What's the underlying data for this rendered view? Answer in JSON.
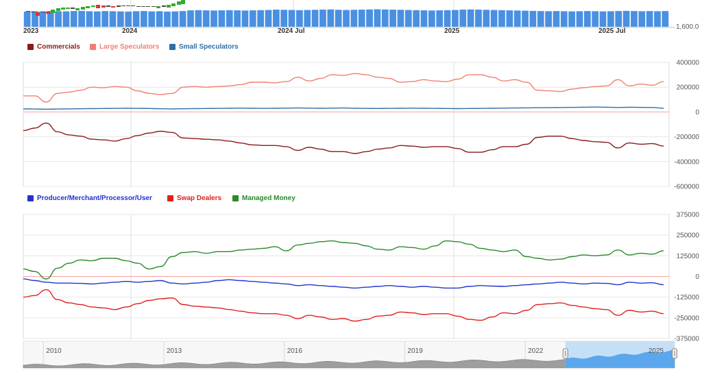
{
  "colors": {
    "commercials": "#8b1a1a",
    "large_speculators": "#f08070",
    "small_speculators": "#2f6ea8",
    "producer": "#2233cc",
    "swap_dealers": "#e02020",
    "managed_money": "#2a8a2a",
    "volume_bar": "#4a90e2",
    "zero_line": "#f2a0a0",
    "navigator_fill": "#9e9e9e",
    "navigator_selection": "#bcdcf6",
    "navigator_selected_fill": "#5aa7ee"
  },
  "top_panel": {
    "x_labels": [
      "2023",
      "2024",
      "2024 Jul",
      "2025",
      "2025 Jul"
    ],
    "y_label": "1,600.0"
  },
  "legend1": {
    "commercials": "Commercials",
    "large_speculators": "Large Speculators",
    "small_speculators": "Small Speculators"
  },
  "legend2": {
    "producer": "Producer/Merchant/Processor/User",
    "swap_dealers": "Swap Dealers",
    "managed_money": "Managed Money"
  },
  "navigator": {
    "labels": [
      "2010",
      "2013",
      "2016",
      "2019",
      "2022",
      "2025"
    ]
  },
  "chart_data": [
    {
      "type": "bar",
      "name": "volume",
      "y_label": "1,600.0",
      "x_range": [
        2023.0,
        2025.72
      ],
      "values_relative": [
        0.85,
        0.87,
        0.86,
        0.88,
        0.87,
        0.86,
        0.88,
        0.89,
        0.87,
        0.86,
        0.88,
        0.87,
        0.86,
        0.85,
        0.87,
        0.88,
        0.86,
        0.87,
        0.85,
        0.86,
        0.88,
        0.92,
        0.93,
        0.92,
        0.91,
        0.92,
        0.93,
        0.92,
        0.91,
        0.92,
        0.93,
        0.94,
        0.96,
        0.95,
        0.94,
        0.93,
        0.94,
        0.95,
        0.96,
        0.97,
        0.95,
        0.94,
        0.95,
        0.96,
        0.97,
        0.98,
        0.97,
        0.96,
        0.95,
        0.94,
        0.93,
        0.92,
        0.91,
        0.92,
        0.93,
        0.94,
        0.96,
        0.97,
        0.96,
        0.95,
        0.94,
        0.93,
        0.92,
        0.91,
        0.9,
        0.89,
        0.88,
        0.87,
        0.88,
        0.87,
        0.86,
        0.87,
        0.88,
        0.87,
        0.86,
        0.87,
        0.88,
        0.89,
        0.88,
        0.87,
        0.88,
        0.87,
        0.88
      ]
    },
    {
      "type": "line",
      "name": "legacy positions",
      "x_range": [
        2023.0,
        2025.72
      ],
      "ylim": [
        -600000,
        400000
      ],
      "yticks": [
        400000,
        200000,
        0,
        -200000,
        -400000,
        -600000
      ],
      "series": [
        {
          "name": "Large Speculators",
          "color_key": "large_speculators",
          "values": [
            130000,
            130000,
            80000,
            150000,
            160000,
            175000,
            200000,
            195000,
            205000,
            200000,
            170000,
            150000,
            140000,
            150000,
            200000,
            205000,
            200000,
            205000,
            210000,
            220000,
            240000,
            240000,
            235000,
            245000,
            280000,
            250000,
            270000,
            300000,
            295000,
            310000,
            300000,
            280000,
            270000,
            240000,
            245000,
            260000,
            250000,
            245000,
            265000,
            300000,
            300000,
            280000,
            250000,
            260000,
            240000,
            175000,
            170000,
            165000,
            185000,
            195000,
            205000,
            210000,
            260000,
            210000,
            225000,
            215000,
            245000
          ]
        },
        {
          "name": "Small Speculators",
          "color_key": "small_speculators",
          "values": [
            25000,
            24000,
            22000,
            24000,
            25000,
            26000,
            27000,
            28000,
            29000,
            30000,
            29000,
            28000,
            26000,
            25000,
            26000,
            27000,
            28000,
            29000,
            30000,
            31000,
            30000,
            29000,
            30000,
            31000,
            32000,
            31000,
            30000,
            31000,
            32000,
            30000,
            29000,
            28000,
            29000,
            30000,
            31000,
            30000,
            29000,
            28000,
            27000,
            28000,
            29000,
            30000,
            31000,
            32000,
            33000,
            34000,
            35000,
            36000,
            37000,
            38000,
            40000,
            38000,
            36000,
            38000,
            37000,
            36000,
            30000
          ]
        },
        {
          "name": "Commercials",
          "color_key": "commercials",
          "values": [
            -150000,
            -130000,
            -90000,
            -160000,
            -185000,
            -195000,
            -220000,
            -225000,
            -235000,
            -215000,
            -190000,
            -170000,
            -155000,
            -165000,
            -210000,
            -215000,
            -220000,
            -225000,
            -235000,
            -250000,
            -265000,
            -270000,
            -270000,
            -280000,
            -310000,
            -285000,
            -300000,
            -320000,
            -320000,
            -335000,
            -320000,
            -300000,
            -290000,
            -270000,
            -275000,
            -285000,
            -280000,
            -280000,
            -295000,
            -325000,
            -325000,
            -305000,
            -280000,
            -280000,
            -260000,
            -205000,
            -195000,
            -195000,
            -215000,
            -230000,
            -240000,
            -245000,
            -290000,
            -250000,
            -260000,
            -255000,
            -275000
          ]
        }
      ]
    },
    {
      "type": "line",
      "name": "disaggregated positions",
      "x_range": [
        2023.0,
        2025.72
      ],
      "ylim": [
        -375000,
        375000
      ],
      "yticks": [
        375000,
        250000,
        125000,
        0,
        -125000,
        -250000,
        -375000
      ],
      "series": [
        {
          "name": "Managed Money",
          "color_key": "managed_money",
          "values": [
            45000,
            30000,
            -15000,
            50000,
            80000,
            100000,
            95000,
            110000,
            110000,
            95000,
            80000,
            45000,
            60000,
            120000,
            145000,
            150000,
            140000,
            150000,
            150000,
            160000,
            165000,
            170000,
            180000,
            155000,
            190000,
            200000,
            210000,
            215000,
            205000,
            200000,
            185000,
            165000,
            160000,
            180000,
            175000,
            165000,
            185000,
            215000,
            210000,
            195000,
            170000,
            160000,
            150000,
            160000,
            120000,
            110000,
            100000,
            105000,
            120000,
            130000,
            125000,
            130000,
            160000,
            130000,
            140000,
            135000,
            155000
          ]
        },
        {
          "name": "Producer/Merchant/Processor/User",
          "color_key": "producer",
          "values": [
            -15000,
            -25000,
            -35000,
            -40000,
            -40000,
            -42000,
            -45000,
            -40000,
            -35000,
            -30000,
            -35000,
            -30000,
            -25000,
            -40000,
            -45000,
            -40000,
            -35000,
            -25000,
            -20000,
            -25000,
            -30000,
            -35000,
            -40000,
            -45000,
            -55000,
            -50000,
            -55000,
            -60000,
            -65000,
            -70000,
            -65000,
            -60000,
            -55000,
            -60000,
            -65000,
            -60000,
            -65000,
            -70000,
            -70000,
            -60000,
            -55000,
            -58000,
            -60000,
            -55000,
            -50000,
            -45000,
            -40000,
            -35000,
            -40000,
            -45000,
            -40000,
            -42000,
            -50000,
            -35000,
            -40000,
            -38000,
            -50000
          ]
        },
        {
          "name": "Swap Dealers",
          "color_key": "swap_dealers",
          "values": [
            -125000,
            -115000,
            -80000,
            -140000,
            -160000,
            -170000,
            -185000,
            -190000,
            -200000,
            -185000,
            -165000,
            -145000,
            -135000,
            -130000,
            -170000,
            -180000,
            -185000,
            -190000,
            -200000,
            -210000,
            -220000,
            -225000,
            -225000,
            -235000,
            -255000,
            -235000,
            -245000,
            -260000,
            -255000,
            -270000,
            -260000,
            -240000,
            -235000,
            -215000,
            -220000,
            -230000,
            -225000,
            -225000,
            -240000,
            -260000,
            -265000,
            -245000,
            -220000,
            -225000,
            -205000,
            -170000,
            -165000,
            -160000,
            -175000,
            -185000,
            -195000,
            -200000,
            -235000,
            -205000,
            -215000,
            -210000,
            -225000
          ]
        }
      ]
    },
    {
      "type": "area",
      "name": "navigator",
      "x_range": [
        2009.5,
        2025.72
      ],
      "xticks": [
        2010,
        2013,
        2016,
        2019,
        2022,
        2025
      ],
      "selected_range": [
        2023.0,
        2025.72
      ]
    }
  ]
}
